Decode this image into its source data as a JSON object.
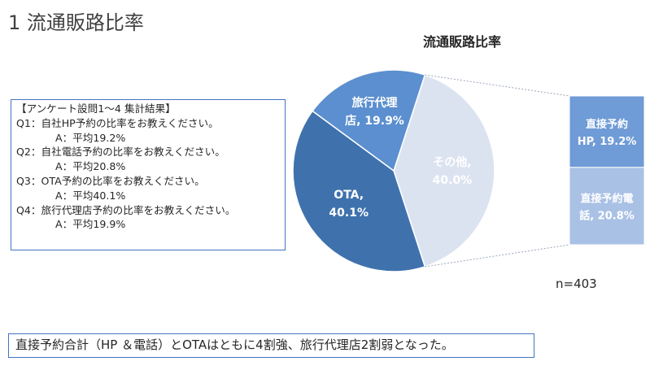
{
  "slide_title": "1 流通販路比率",
  "survey": {
    "heading": "【アンケート設問1～4 集計結果】",
    "items": [
      {
        "q": "Q1：自社HP予約の比率をお教えください。",
        "a": "A：平均19.2%"
      },
      {
        "q": "Q2：自社電話予約の比率をお教えください。",
        "a": "A：平均20.8%"
      },
      {
        "q": "Q3：OTA予約の比率をお教えください。",
        "a": "A：平均40.1%"
      },
      {
        "q": "Q4：旅行代理店予約の比率をお教えください。",
        "a": "A：平均19.9%"
      }
    ]
  },
  "n_label": "n=403",
  "conclusion": "直接予約合計（HP ＆電話）とOTAはともに4割強、旅行代理店2割弱となった。",
  "chart_data": {
    "type": "pie",
    "title": "流通販路比率",
    "slices": [
      {
        "label": "その他",
        "value": 40.0,
        "display": "40.0%",
        "color": "#dce3f0",
        "text_color": "#ffffff"
      },
      {
        "label": "OTA",
        "value": 40.1,
        "display": "40.1%",
        "color": "#3f72ad",
        "text_color": "#ffffff"
      },
      {
        "label": "旅行代理店",
        "value": 19.9,
        "display": "19.9%",
        "color": "#5b8fcf",
        "text_color": "#ffffff"
      }
    ],
    "breakout": {
      "of": "その他",
      "items": [
        {
          "label": "直接予約HP",
          "value": 19.2,
          "display": "19.2%",
          "color": "#6f9bd6"
        },
        {
          "label": "直接予約電話",
          "value": 20.8,
          "display": "20.8%",
          "color": "#aac1e6"
        }
      ]
    }
  }
}
